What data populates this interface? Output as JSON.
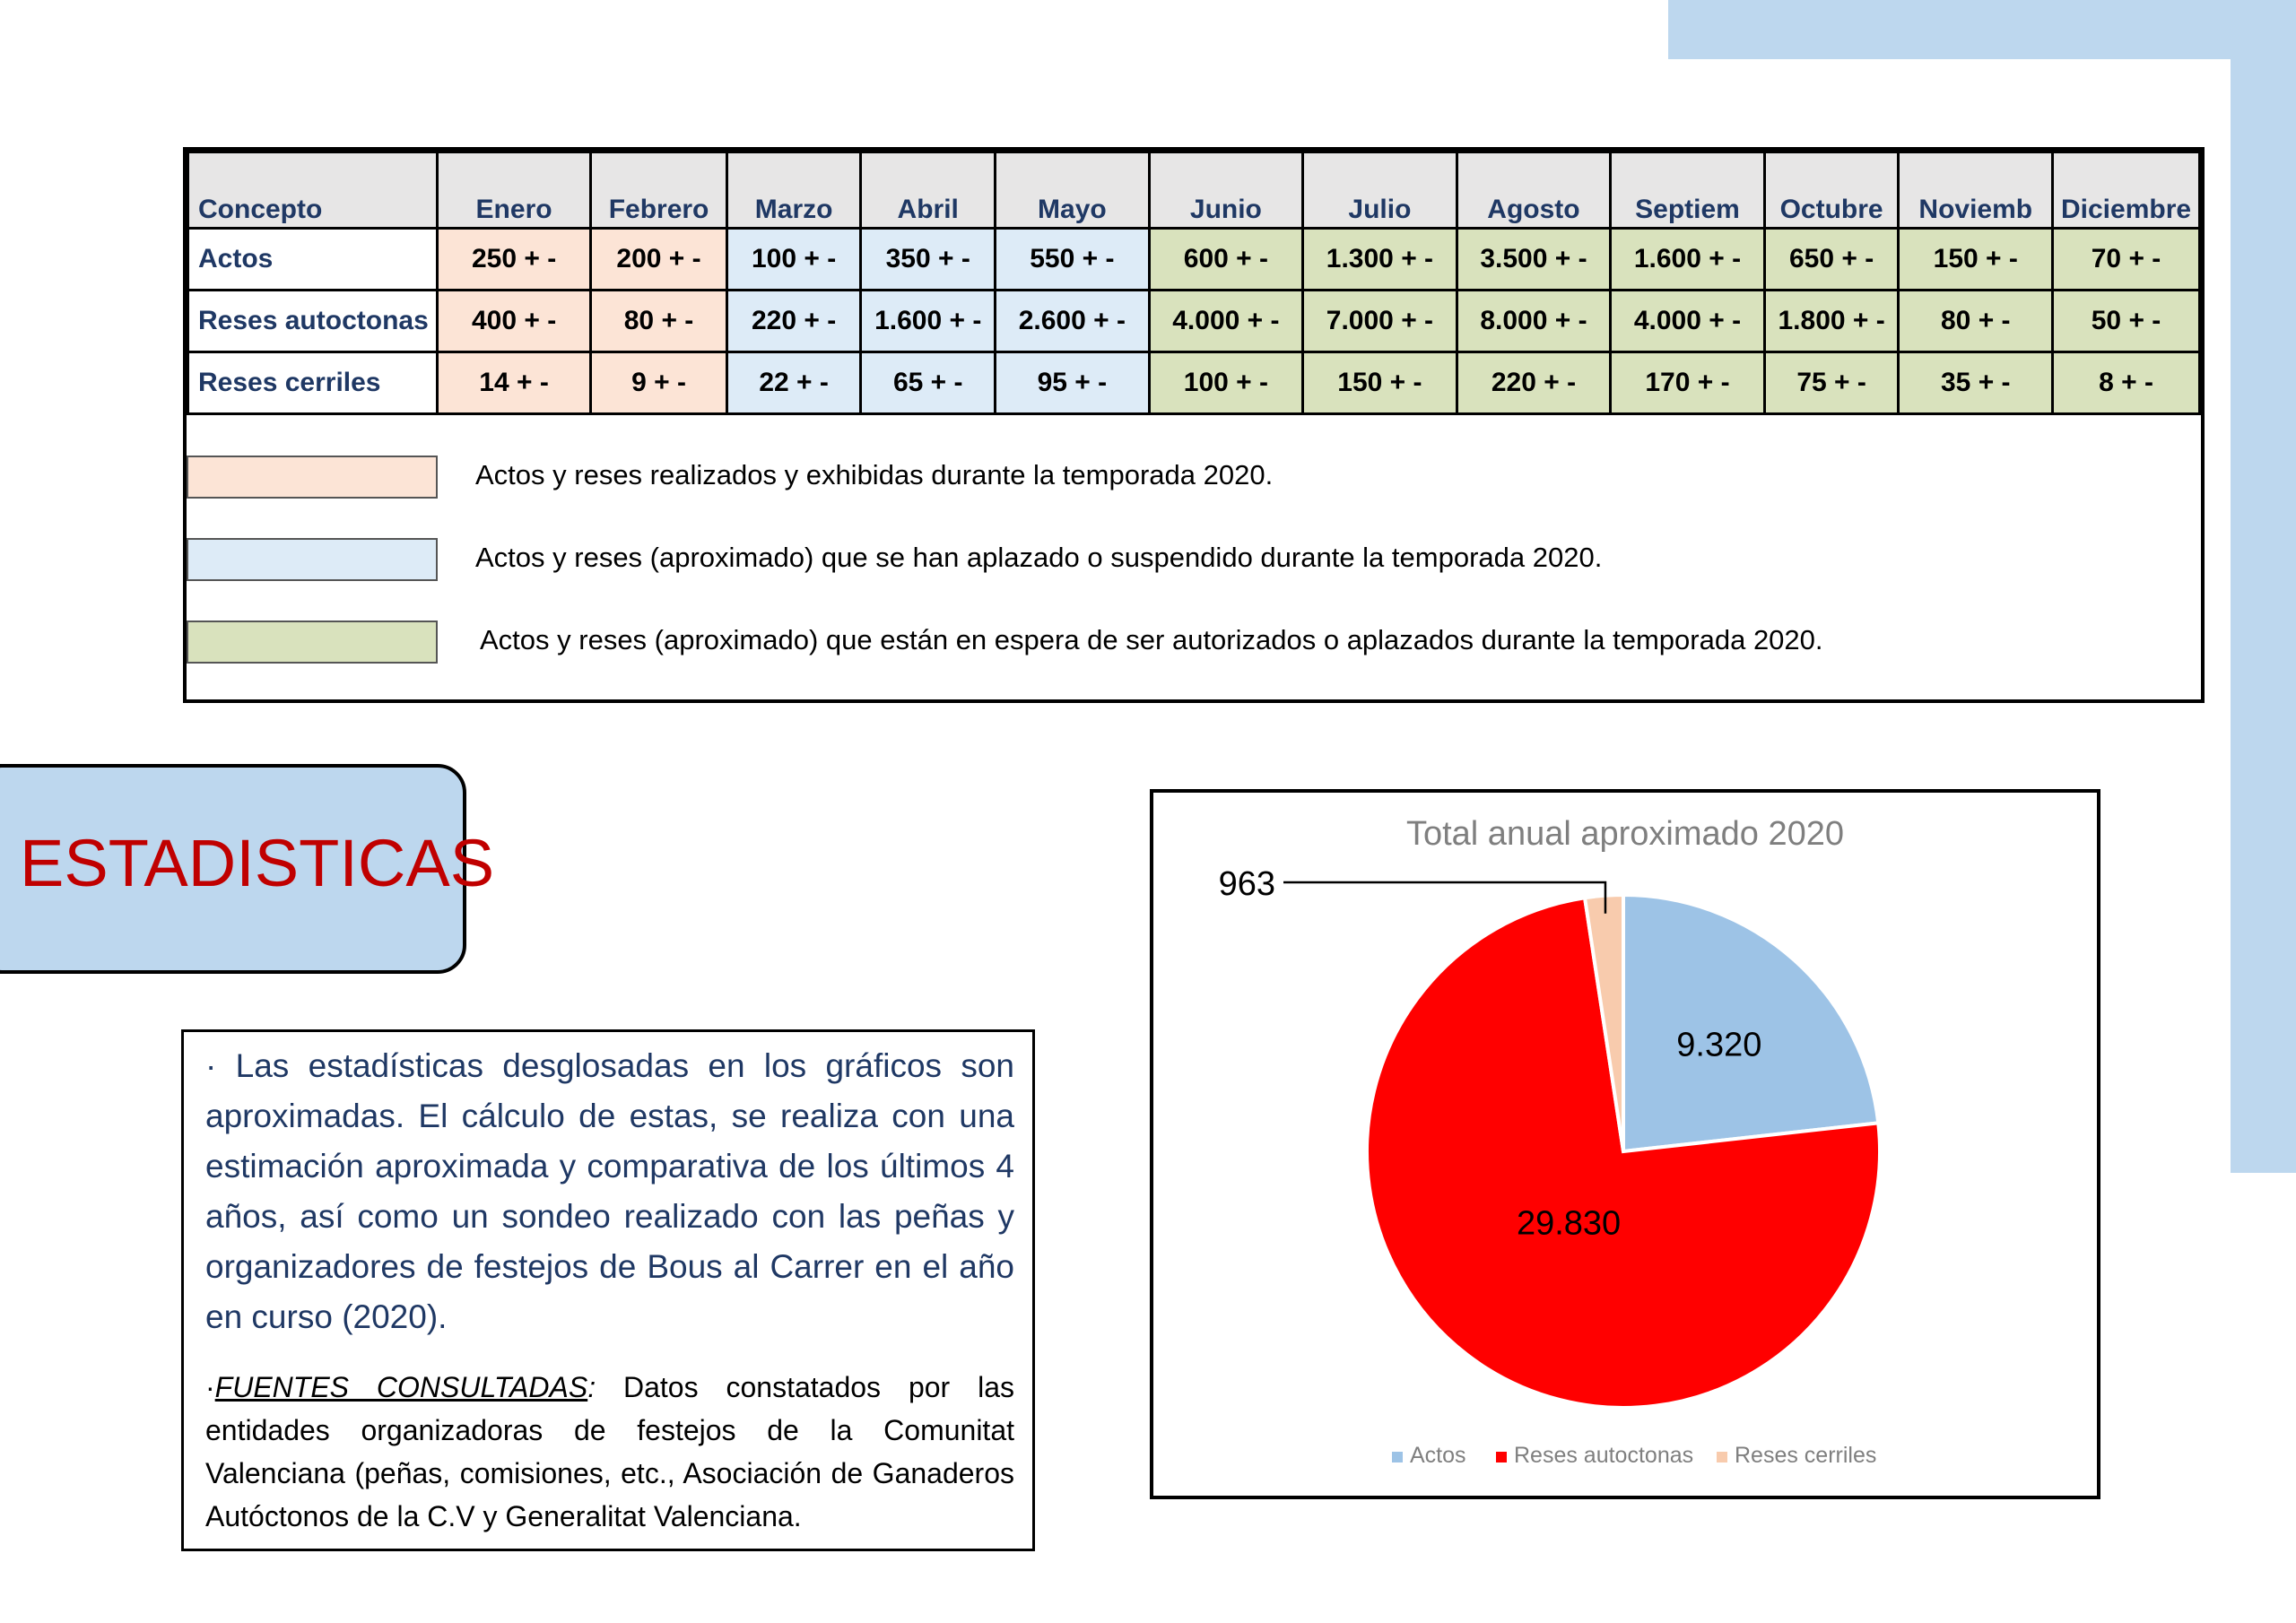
{
  "table": {
    "headers": [
      "Concepto",
      "Enero",
      "Febrero",
      "Marzo",
      "Abril",
      "Mayo",
      "Junio",
      "Julio",
      "Agosto",
      "Septiem",
      "Octubre",
      "Noviemb",
      "Diciembre"
    ],
    "rows": [
      {
        "label": "Actos",
        "values": [
          "250  + -",
          "200  + -",
          "100  + -",
          "350 + -",
          "550 + -",
          "600 + -",
          "1.300  + -",
          "3.500  + -",
          "1.600  + -",
          "650 + -",
          "150  + -",
          "70  + -"
        ]
      },
      {
        "label": "Reses autoctonas",
        "values": [
          "400  + -",
          "80  + -",
          "220  + -",
          "1.600  + -",
          "2.600  + -",
          "4.000  + -",
          "7.000  + -",
          "8.000  + -",
          "4.000  + -",
          "1.800  + -",
          "80  + -",
          "50  + -"
        ]
      },
      {
        "label": "Reses cerriles",
        "values": [
          "14  + -",
          "9  + -",
          "22  + -",
          "65  + -",
          "95  + -",
          "100  + -",
          "150  + -",
          "220  + -",
          "170  + -",
          "75  + -",
          "35  + -",
          "8  + -"
        ]
      }
    ],
    "column_status": [
      "peach",
      "peach",
      "blue",
      "blue",
      "blue",
      "green",
      "green",
      "green",
      "green",
      "green",
      "green",
      "green"
    ]
  },
  "legend": [
    {
      "color": "#fce4d6",
      "text": "Actos y reses realizados y exhibidas durante la temporada 2020."
    },
    {
      "color": "#ddebf7",
      "text": "Actos y reses (aproximado) que se han aplazado o suspendido durante la temporada 2020."
    },
    {
      "color": "#d9e2bd",
      "text": "Actos y reses (aproximado) que están en espera de ser autorizados o aplazados durante la temporada 2020."
    }
  ],
  "section_title": "ESTADISTICAS",
  "note": {
    "paragraph": "· Las estadísticas desglosadas en los gráficos son aproximadas. El cálculo de estas, se realiza con una estimación aproximada y comparativa de los últimos 4 años, así como un sondeo realizado con las peñas y organizadores de festejos de Bous al Carrer en el año en curso (2020).",
    "sources_prefix": "·",
    "sources_label": "FUENTES CONSULTADAS",
    "sources_colon": ":",
    "sources_text": " Datos constatados por las entidades organizadoras de festejos de la Comunitat Valenciana (peñas, comisiones, etc., Asociación de Ganaderos Autóctonos de la C.V y Generalitat Valenciana."
  },
  "colors": {
    "actos": "#9dc3e6",
    "reses_autoctonas": "#ff0000",
    "reses_cerriles": "#f8cbad"
  },
  "chart_data": {
    "type": "pie",
    "title": "Total  anual aproximado  2020",
    "categories": [
      "Actos",
      "Reses autoctonas",
      "Reses cerriles"
    ],
    "values": [
      9320,
      29830,
      963
    ],
    "data_labels": [
      "9.320",
      "29.830",
      "963"
    ],
    "colors": [
      "#9dc3e6",
      "#ff0000",
      "#f8cbad"
    ],
    "legend_position": "bottom"
  }
}
